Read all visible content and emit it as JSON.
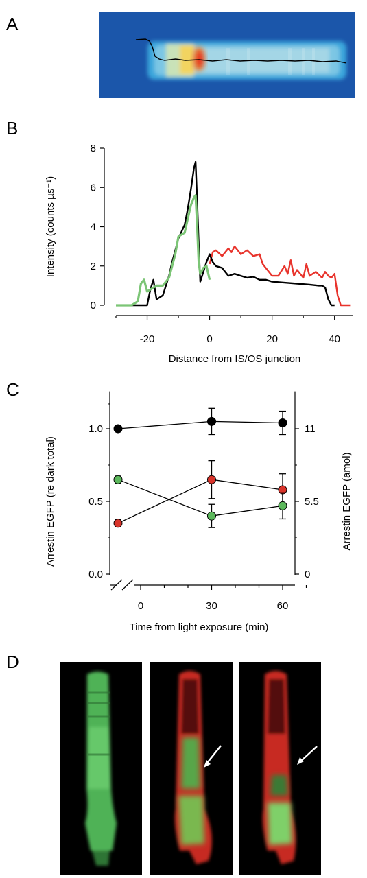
{
  "panels": {
    "A": {
      "label": "A"
    },
    "B": {
      "label": "B"
    },
    "C": {
      "label": "C"
    },
    "D": {
      "label": "D"
    }
  },
  "colors": {
    "black_trace": "#000000",
    "green_trace": "#7cc576",
    "red_trace": "#e8342c",
    "green_marker": "#5cb85c",
    "red_marker": "#d9342b",
    "image_background_blue": "#1a55a8"
  },
  "chart_data": [
    {
      "panel": "B",
      "type": "line",
      "xlabel": "Distance from IS/OS junction",
      "ylabel": "Intensity (counts µs⁻¹)",
      "xlim": [
        -30,
        46
      ],
      "ylim": [
        0,
        8
      ],
      "xticks": [
        -20,
        0,
        20,
        40
      ],
      "yticks": [
        0,
        2,
        4,
        6,
        8
      ],
      "series": [
        {
          "color": "#e8342c",
          "x": [
            0,
            1,
            2,
            4,
            6,
            7,
            8,
            10,
            12,
            14,
            16,
            17,
            18,
            20,
            22,
            24,
            25,
            26,
            27,
            28,
            30,
            31,
            32,
            34,
            36,
            37,
            38,
            39,
            40,
            41,
            42,
            44,
            45
          ],
          "y": [
            2.1,
            2.7,
            2.8,
            2.5,
            2.9,
            2.7,
            3.0,
            2.6,
            2.8,
            2.5,
            2.6,
            2.1,
            1.9,
            1.5,
            1.5,
            2.0,
            1.6,
            2.3,
            1.5,
            1.8,
            1.4,
            2.1,
            1.5,
            1.7,
            1.4,
            1.7,
            1.5,
            1.4,
            1.6,
            0.5,
            0.0,
            0.0,
            0.0
          ]
        },
        {
          "color": "#000000",
          "x": [
            -30,
            -22,
            -20,
            -19,
            -18,
            -17,
            -15,
            -13,
            -12,
            -10,
            -8,
            -7,
            -6,
            -5,
            -4.5,
            -4,
            -3.5,
            -3,
            -2,
            -1,
            0,
            1,
            2,
            4,
            6,
            8,
            10,
            12,
            14,
            16,
            18,
            20,
            24,
            28,
            32,
            35,
            36,
            37,
            38,
            39,
            40
          ],
          "y": [
            0,
            0,
            0,
            0.8,
            1.3,
            0.3,
            0.5,
            1.5,
            2.2,
            3.4,
            4.1,
            4.9,
            5.9,
            7.0,
            7.3,
            5.3,
            3.2,
            1.2,
            1.7,
            2.2,
            2.6,
            2.2,
            2.0,
            1.9,
            1.5,
            1.6,
            1.5,
            1.4,
            1.45,
            1.3,
            1.3,
            1.2,
            1.15,
            1.1,
            1.05,
            1.0,
            1.0,
            0.9,
            0.3,
            0.0,
            0.0
          ]
        },
        {
          "color": "#7cc576",
          "x": [
            -30,
            -25,
            -23,
            -22,
            -21,
            -20,
            -19,
            -17,
            -15,
            -13,
            -11,
            -10,
            -8,
            -7,
            -6,
            -5,
            -4.5,
            -4,
            -3.5,
            -3,
            -2,
            -1,
            0
          ],
          "y": [
            0,
            0,
            0.2,
            1.1,
            1.3,
            0.7,
            0.8,
            1.0,
            1.0,
            1.4,
            2.6,
            3.5,
            3.7,
            4.4,
            5.1,
            5.5,
            5.6,
            4.0,
            2.2,
            1.6,
            1.9,
            2.0,
            1.3
          ]
        }
      ]
    },
    {
      "panel": "C",
      "type": "scatter",
      "xlabel": "Time from light exposure (min)",
      "ylabel": "Arrestin EGFP (re dark total)",
      "ylabel_right": "Arrestin EGFP (amol)",
      "xticks": [
        0,
        30,
        60
      ],
      "yticks": [
        "0.0",
        "0.5",
        "1.0"
      ],
      "yticks_right": [
        "0",
        "5.5",
        "11"
      ],
      "ylim": [
        -0.02,
        1.22
      ],
      "series": [
        {
          "color": "#000000",
          "x": [
            -10,
            30,
            60
          ],
          "y": [
            1.0,
            1.05,
            1.04
          ],
          "err": [
            0,
            0.09,
            0.08
          ]
        },
        {
          "color": "#d9342b",
          "x": [
            -10,
            30,
            60
          ],
          "y": [
            0.35,
            0.65,
            0.58
          ],
          "err": [
            0.025,
            0.13,
            0.11
          ]
        },
        {
          "color": "#5cb85c",
          "x": [
            -10,
            30,
            60
          ],
          "y": [
            0.65,
            0.4,
            0.47
          ],
          "err": [
            0.025,
            0.08,
            0.09
          ]
        }
      ]
    }
  ]
}
